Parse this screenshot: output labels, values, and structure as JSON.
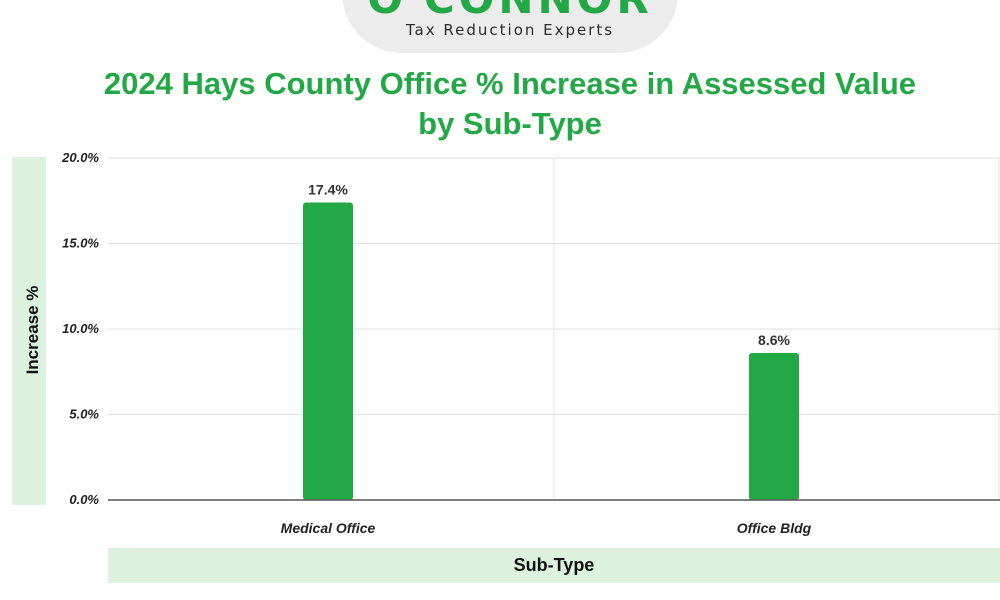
{
  "logo": {
    "wordmark": "O'CONNOR",
    "tagline": "Tax Reduction Experts"
  },
  "colors": {
    "brand_green": "#22a845",
    "label_bg": "#dcf2de",
    "grid": "#e0e0e0"
  },
  "chart_data": {
    "type": "bar",
    "title": "2024 Hays County Office % Increase in Assessed Value by Sub-Type",
    "xlabel": "Sub-Type",
    "ylabel": "Increase %",
    "categories": [
      "Medical Office",
      "Office Bldg"
    ],
    "values": [
      17.4,
      8.6
    ],
    "data_labels": [
      "17.4%",
      "8.6%"
    ],
    "ylim": [
      0,
      20
    ],
    "yticks": [
      "0.0%",
      "5.0%",
      "10.0%",
      "15.0%",
      "20.0%"
    ],
    "grid": true,
    "legend": "none"
  }
}
